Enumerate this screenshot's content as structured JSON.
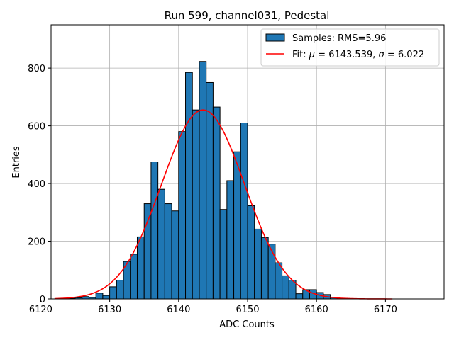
{
  "chart_data": {
    "type": "bar",
    "title": "Run 599, channel031, Pedestal",
    "xlabel": "ADC Counts",
    "ylabel": "Entries",
    "xlim": [
      6121.5,
      6178.5
    ],
    "ylim": [
      0,
      950
    ],
    "grid": true,
    "legend_position": "top-right",
    "xticks": [
      6120,
      6130,
      6140,
      6150,
      6160,
      6170
    ],
    "yticks": [
      0,
      200,
      400,
      600,
      800
    ],
    "bin_width": 1,
    "histogram": {
      "name": "Samples: RMS=5.96",
      "color": "#1f77b4",
      "edgecolor": "#000000",
      "bin_starts": [
        6124,
        6125,
        6126,
        6127,
        6128,
        6129,
        6130,
        6131,
        6132,
        6133,
        6134,
        6135,
        6136,
        6137,
        6138,
        6139,
        6140,
        6141,
        6142,
        6143,
        6144,
        6145,
        6146,
        6147,
        6148,
        6149,
        6150,
        6151,
        6152,
        6153,
        6154,
        6155,
        6156,
        6157,
        6158,
        6159,
        6160,
        6161,
        6162
      ],
      "values": [
        2,
        4,
        8,
        5,
        20,
        12,
        42,
        65,
        130,
        155,
        215,
        330,
        475,
        380,
        330,
        305,
        580,
        785,
        655,
        823,
        750,
        665,
        310,
        410,
        510,
        610,
        323,
        242,
        213,
        190,
        125,
        80,
        65,
        18,
        32,
        32,
        22,
        15,
        5
      ]
    },
    "fit": {
      "name_prefix": "Fit: ",
      "mu_symbol": "μ",
      "sigma_symbol": "σ",
      "mu": 6143.539,
      "sigma": 6.022,
      "amplitude": 655,
      "x_range": [
        6122,
        6171
      ],
      "color": "#ff0000"
    },
    "legend": {
      "samples_label": "Samples: RMS=5.96",
      "fit_prefix": "Fit: ",
      "mu_symbol": "μ",
      "mu_value": " = 6143.539, ",
      "sigma_symbol": "σ",
      "sigma_value": " = 6.022"
    }
  }
}
